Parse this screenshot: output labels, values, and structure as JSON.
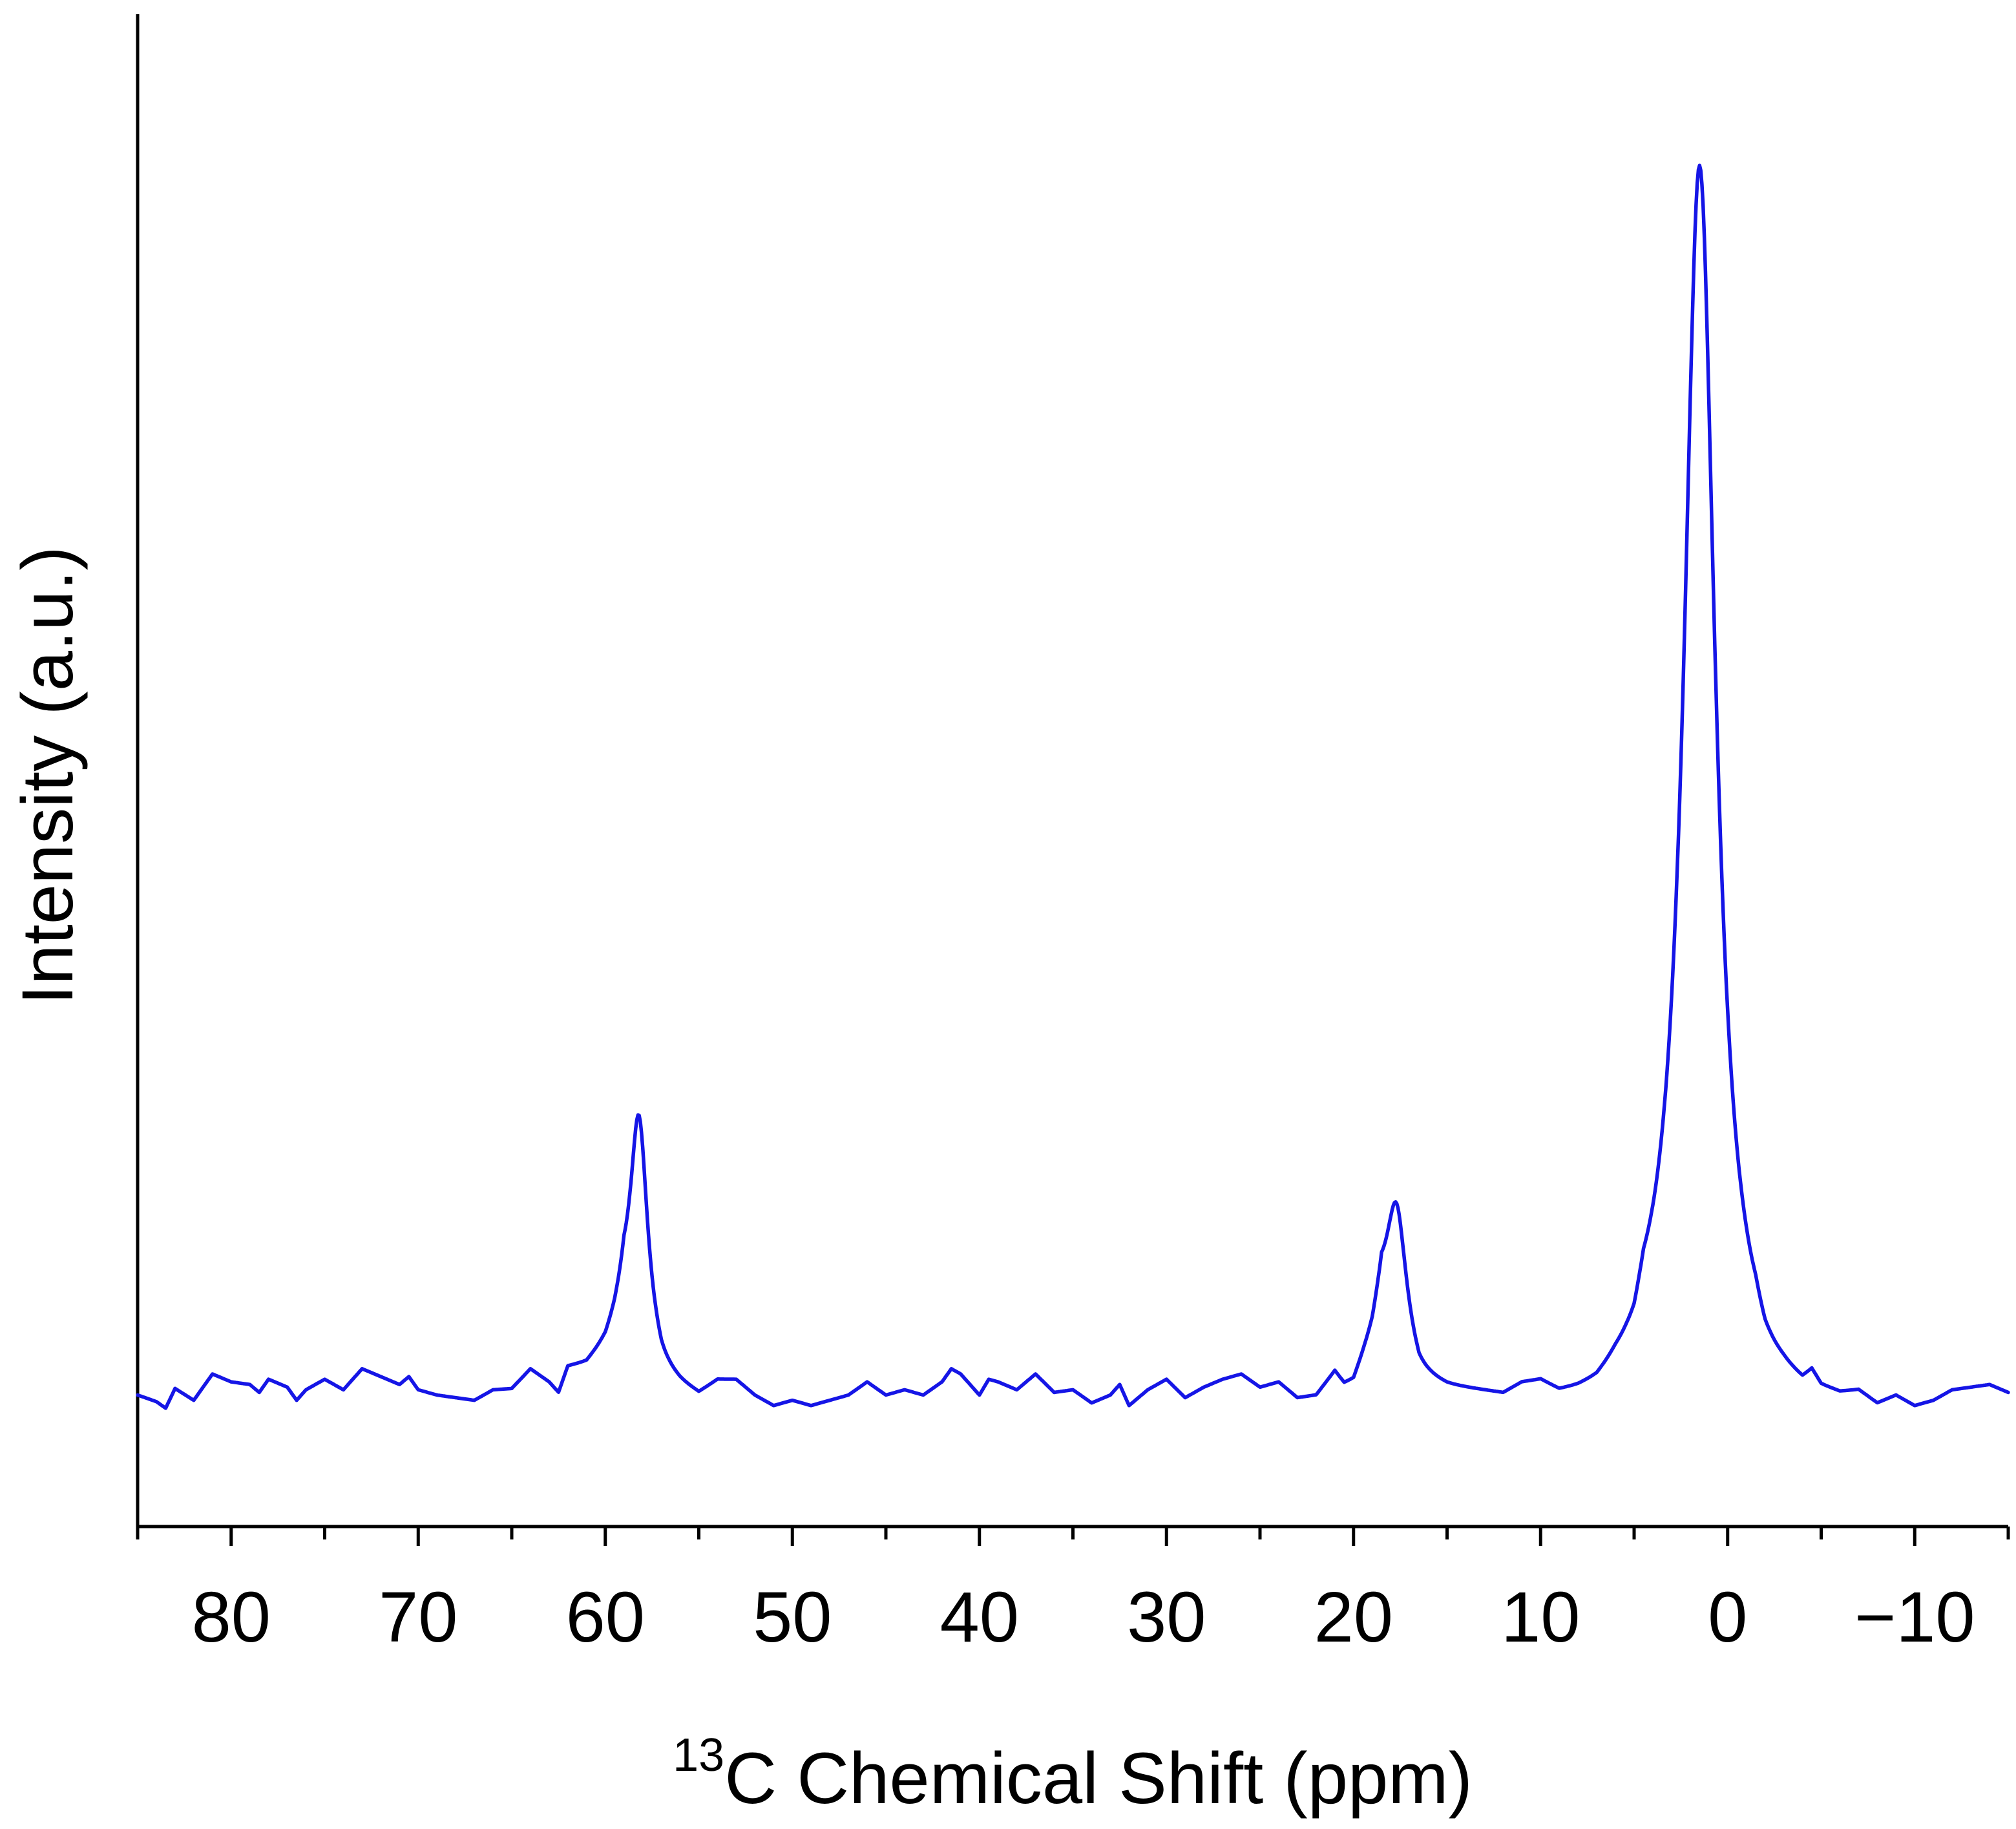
{
  "chart_data": {
    "type": "line",
    "title": "",
    "xlabel": {
      "superscript": "13",
      "text": "C Chemical Shift (ppm)"
    },
    "ylabel": "Intensity (a.u.)",
    "xlim": [
      85,
      -15
    ],
    "ylim": [
      -0.1,
      1.05
    ],
    "x_reversed": true,
    "y_ticks_shown": false,
    "grid": false,
    "legend": "none",
    "x_major_ticks": [
      80,
      70,
      60,
      50,
      40,
      30,
      20,
      10,
      0,
      -10
    ],
    "x_tick_labels": [
      "80",
      "70",
      "60",
      "50",
      "40",
      "30",
      "20",
      "10",
      "0",
      "−10"
    ],
    "line_color": "#1515e6",
    "baseline": [
      [
        85,
        0.0
      ],
      [
        84,
        -0.005
      ],
      [
        83.5,
        -0.01
      ],
      [
        83,
        0.005
      ],
      [
        82,
        -0.004
      ],
      [
        81,
        0.016
      ],
      [
        80,
        0.01
      ],
      [
        79,
        0.008
      ],
      [
        78.5,
        0.002
      ],
      [
        78,
        0.012
      ],
      [
        77,
        0.006
      ],
      [
        76.5,
        -0.004
      ],
      [
        76,
        0.004
      ],
      [
        75,
        0.012
      ],
      [
        74,
        0.004
      ],
      [
        73,
        0.02
      ],
      [
        72,
        0.014
      ],
      [
        71,
        0.008
      ],
      [
        70.5,
        0.014
      ],
      [
        70,
        0.004
      ],
      [
        69,
        0.0
      ],
      [
        68,
        -0.002
      ],
      [
        67,
        -0.004
      ],
      [
        66,
        0.004
      ],
      [
        65,
        0.005
      ],
      [
        64,
        0.02
      ],
      [
        63,
        0.01
      ],
      [
        62.5,
        0.002
      ],
      [
        62,
        0.022
      ],
      [
        61,
        0.025
      ],
      [
        60,
        0.04
      ],
      [
        59.5,
        0.055
      ],
      [
        59,
        0.075
      ],
      [
        57,
        0.02
      ],
      [
        56,
        0.01
      ],
      [
        55,
        0.002
      ],
      [
        54,
        0.012
      ],
      [
        53,
        0.012
      ],
      [
        52,
        0.0
      ],
      [
        51,
        -0.008
      ],
      [
        50,
        -0.004
      ],
      [
        49,
        -0.008
      ],
      [
        48,
        -0.004
      ],
      [
        47,
        0.0
      ],
      [
        46,
        0.01
      ],
      [
        45,
        0.0
      ],
      [
        44,
        0.004
      ],
      [
        43,
        0.0
      ],
      [
        42,
        0.01
      ],
      [
        41.5,
        0.02
      ],
      [
        41,
        0.016
      ],
      [
        40,
        0.0
      ],
      [
        39.5,
        0.012
      ],
      [
        39,
        0.01
      ],
      [
        38,
        0.004
      ],
      [
        37,
        0.016
      ],
      [
        36,
        0.002
      ],
      [
        35,
        0.004
      ],
      [
        34,
        -0.006
      ],
      [
        33,
        0.0
      ],
      [
        32.5,
        0.008
      ],
      [
        32,
        -0.008
      ],
      [
        31,
        0.004
      ],
      [
        30,
        0.012
      ],
      [
        29,
        -0.002
      ],
      [
        28,
        0.006
      ],
      [
        27,
        0.012
      ],
      [
        26,
        0.016
      ],
      [
        25,
        0.006
      ],
      [
        24,
        0.01
      ],
      [
        23,
        -0.002
      ],
      [
        22,
        0.0
      ],
      [
        21,
        0.018
      ],
      [
        20.5,
        0.008
      ],
      [
        20,
        0.01
      ],
      [
        19,
        0.045
      ],
      [
        18.5,
        0.075
      ],
      [
        16.5,
        0.015
      ],
      [
        15,
        0.008
      ],
      [
        14,
        0.006
      ],
      [
        13,
        0.004
      ],
      [
        12,
        0.002
      ],
      [
        11,
        0.01
      ],
      [
        10,
        0.012
      ],
      [
        9,
        0.004
      ],
      [
        8,
        0.006
      ],
      [
        7,
        0.01
      ],
      [
        6,
        0.022
      ],
      [
        5,
        0.03
      ],
      [
        4.5,
        0.05
      ],
      [
        -1.5,
        0.03
      ],
      [
        -2,
        0.018
      ],
      [
        -3,
        0.014
      ],
      [
        -4,
        0.008
      ],
      [
        -4.5,
        0.016
      ],
      [
        -5,
        0.006
      ],
      [
        -6,
        0.002
      ],
      [
        -7,
        0.004
      ],
      [
        -8,
        -0.006
      ],
      [
        -9,
        0.0
      ],
      [
        -10,
        -0.008
      ],
      [
        -11,
        -0.004
      ],
      [
        -12,
        0.004
      ],
      [
        -13,
        0.006
      ],
      [
        -14,
        0.008
      ],
      [
        -15,
        0.002
      ]
    ],
    "series": [
      {
        "name": "",
        "values_note": "",
        "peaks": [
          {
            "x": 58.2,
            "height": 0.16,
            "width": 0.7
          },
          {
            "x": 17.7,
            "height": 0.095,
            "width": 0.8
          },
          {
            "x": 1.5,
            "height": 0.895,
            "width": 1.3
          }
        ]
      }
    ]
  }
}
